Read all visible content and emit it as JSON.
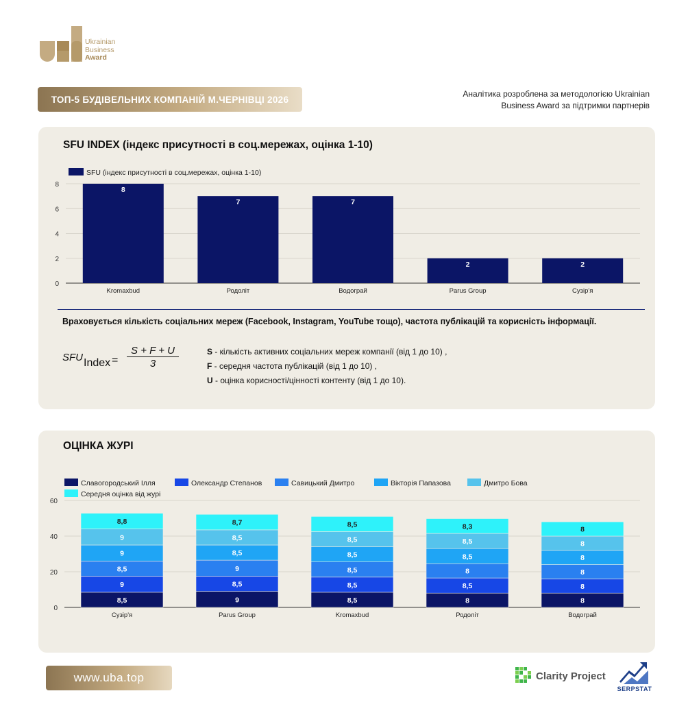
{
  "header": {
    "logo_lines": [
      "Ukrainian",
      "Business",
      "Award"
    ],
    "title": "ТОП-5 БУДІВЕЛЬНИХ КОМПАНІЙ М.ЧЕРНІВЦІ 2026",
    "note_line1": "Аналітика розроблена за методологією Ukrainian",
    "note_line2": "Business Award за підтримки партнерів"
  },
  "sfu": {
    "title": "SFU INDEX (індекс присутності в соц.мережах, оцінка 1-10)",
    "note": "Враховується кількість соціальних мереж (Facebook, Instagram, YouTube тощо), частота публікацій та корисність інформації.",
    "formula": {
      "lhs": "SFU",
      "sub": "Index",
      "eq": "=",
      "numerator": "S + F + U",
      "denominator": "3"
    },
    "definitions": [
      {
        "key": "S",
        "text": " - кількість активних соціальних мереж компанії (від 1 до 10) ,"
      },
      {
        "key": "F",
        "text": " - середня частота публікацій (від 1 до 10) ,"
      },
      {
        "key": "U",
        "text": " - оцінка корисності/цінності контенту (від 1 до 10)."
      }
    ]
  },
  "jury": {
    "title": "ОЦІНКА ЖУРІ"
  },
  "footer": {
    "site": "www.uba.top",
    "partner1": "Clarity Project",
    "partner2": "SERPSTAT"
  },
  "colors": {
    "gold": "#b59a6a",
    "panel_bg": "#f0ede5",
    "navy": "#0b1566"
  },
  "chart_data": [
    {
      "type": "bar",
      "title": "SFU INDEX (індекс присутності в соц.мережах, оцінка 1-10)",
      "categories": [
        "Kromaxbud",
        "Родоліт",
        "Водограй",
        "Parus Group",
        "Сузір'я"
      ],
      "series": [
        {
          "name": "SFU (індекс присутності в соц.мережах, оцінка 1-10)",
          "values": [
            8,
            7,
            7,
            2,
            2
          ],
          "color": "#0b1566"
        }
      ],
      "ylim": [
        0,
        8
      ],
      "yticks": [
        0,
        2,
        4,
        6,
        8
      ],
      "grid": true,
      "legend": "top-left",
      "data_labels": true
    },
    {
      "type": "bar",
      "stacked": true,
      "title": "ОЦІНКА ЖУРІ",
      "categories": [
        "Сузір'я",
        "Parus Group",
        "Kromaxbud",
        "Родоліт",
        "Водограй"
      ],
      "series": [
        {
          "name": "Славогородський Ілля",
          "values": [
            8.5,
            9,
            8.5,
            8,
            8
          ],
          "labels": [
            "8,5",
            "9",
            "8,5",
            "8",
            "8"
          ],
          "color": "#0b1566"
        },
        {
          "name": "Олександр Степанов",
          "values": [
            9,
            8.5,
            8.5,
            8.5,
            8
          ],
          "labels": [
            "9",
            "8,5",
            "8,5",
            "8,5",
            "8"
          ],
          "color": "#1747e6"
        },
        {
          "name": "Савицький Дмитро",
          "values": [
            8.5,
            9,
            8.5,
            8,
            8
          ],
          "labels": [
            "8,5",
            "9",
            "8,5",
            "8",
            "8"
          ],
          "color": "#2a80f0"
        },
        {
          "name": "Вікторія Папазова",
          "values": [
            9,
            8.5,
            8.5,
            8.5,
            8
          ],
          "labels": [
            "9",
            "8,5",
            "8,5",
            "8,5",
            "8"
          ],
          "color": "#1fa5f5"
        },
        {
          "name": "Дмитро Бова",
          "values": [
            9,
            8.5,
            8.5,
            8.5,
            8
          ],
          "labels": [
            "9",
            "8,5",
            "8,5",
            "8,5",
            "8"
          ],
          "color": "#56c3ec"
        },
        {
          "name": "Середня оцінка від журі",
          "values": [
            8.8,
            8.7,
            8.5,
            8.3,
            8
          ],
          "labels": [
            "8,8",
            "8,7",
            "8,5",
            "8,3",
            "8"
          ],
          "color": "#2ef2fa"
        }
      ],
      "ylim": [
        0,
        60
      ],
      "yticks": [
        0,
        20,
        40,
        60
      ],
      "grid": true,
      "legend": "top-left",
      "data_labels": true
    }
  ]
}
